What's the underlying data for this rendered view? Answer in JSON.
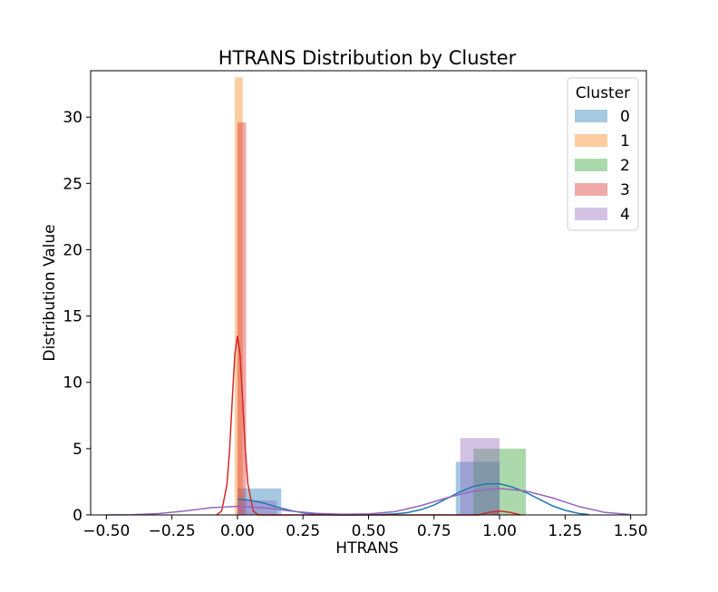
{
  "chart_data": {
    "type": "histogram-kde",
    "title": "HTRANS Distribution by Cluster",
    "xlabel": "HTRANS",
    "ylabel": "Distribution Value",
    "xlim": [
      -0.56,
      1.56
    ],
    "ylim": [
      0,
      33.5
    ],
    "xticks": [
      -0.5,
      -0.25,
      0.0,
      0.25,
      0.5,
      0.75,
      1.0,
      1.25,
      1.5
    ],
    "xtick_labels": [
      "−0.50",
      "−0.25",
      "0.00",
      "0.25",
      "0.50",
      "0.75",
      "1.00",
      "1.25",
      "1.50"
    ],
    "yticks": [
      0,
      5,
      10,
      15,
      20,
      25,
      30
    ],
    "ytick_labels": [
      "0",
      "5",
      "10",
      "15",
      "20",
      "25",
      "30"
    ],
    "grid": false,
    "legend": {
      "title": "Cluster",
      "placement": "top-right"
    },
    "series": [
      {
        "name": "0",
        "color": "#1f77b4",
        "bars": [
          {
            "x0": 0.0,
            "x1": 0.167,
            "value": 2.0
          },
          {
            "x0": 0.833,
            "x1": 1.0,
            "value": 4.0
          }
        ],
        "kde": {
          "x": [
            0.0,
            0.05,
            0.1,
            0.15,
            0.2,
            0.25,
            0.3,
            0.35,
            0.4,
            0.45,
            0.5,
            0.55,
            0.6,
            0.65,
            0.7,
            0.75,
            0.8,
            0.85,
            0.9,
            0.95,
            1.0,
            1.05,
            1.1,
            1.15,
            1.2,
            1.25,
            1.3,
            1.34
          ],
          "y": [
            1.2,
            1.1,
            0.9,
            0.6,
            0.35,
            0.15,
            0.05,
            0.01,
            0.0,
            0.0,
            0.01,
            0.03,
            0.08,
            0.18,
            0.4,
            0.75,
            1.25,
            1.75,
            2.15,
            2.35,
            2.35,
            2.1,
            1.7,
            1.2,
            0.7,
            0.35,
            0.12,
            0.03
          ]
        }
      },
      {
        "name": "1",
        "color": "#ff7f0e",
        "bars": [
          {
            "x0": -0.01,
            "x1": 0.02,
            "value": 33.0
          }
        ],
        "kde": null
      },
      {
        "name": "2",
        "color": "#2ca02c",
        "bars": [
          {
            "x0": 0.9,
            "x1": 1.1,
            "value": 5.0
          }
        ],
        "kde": null
      },
      {
        "name": "3",
        "color": "#d62728",
        "bars": [
          {
            "x0": 0.0,
            "x1": 0.033,
            "value": 29.6
          },
          {
            "x0": 0.967,
            "x1": 1.0,
            "value": 0.3
          }
        ],
        "kde": {
          "x": [
            -0.08,
            -0.06,
            -0.04,
            -0.03,
            -0.02,
            -0.01,
            0.0,
            0.01,
            0.02,
            0.03,
            0.04,
            0.06,
            0.08,
            0.92,
            0.96,
            1.0,
            1.04,
            1.08
          ],
          "y": [
            0.0,
            0.3,
            2.3,
            4.9,
            8.6,
            12.1,
            13.5,
            12.1,
            8.6,
            4.9,
            2.3,
            0.3,
            0.0,
            0.0,
            0.2,
            0.3,
            0.2,
            0.0
          ]
        }
      },
      {
        "name": "4",
        "color": "#9467bd",
        "bars": [
          {
            "x0": 0.0,
            "x1": 0.15,
            "value": 1.1
          },
          {
            "x0": 0.85,
            "x1": 1.0,
            "value": 5.8
          }
        ],
        "kde": {
          "x": [
            -0.5,
            -0.4,
            -0.3,
            -0.2,
            -0.1,
            0.0,
            0.1,
            0.2,
            0.3,
            0.4,
            0.5,
            0.6,
            0.7,
            0.8,
            0.9,
            1.0,
            1.1,
            1.2,
            1.3,
            1.4,
            1.5
          ],
          "y": [
            0.0,
            0.02,
            0.1,
            0.3,
            0.55,
            0.65,
            0.55,
            0.3,
            0.12,
            0.05,
            0.08,
            0.25,
            0.7,
            1.3,
            1.8,
            2.0,
            1.8,
            1.3,
            0.65,
            0.2,
            0.03
          ]
        }
      }
    ]
  }
}
